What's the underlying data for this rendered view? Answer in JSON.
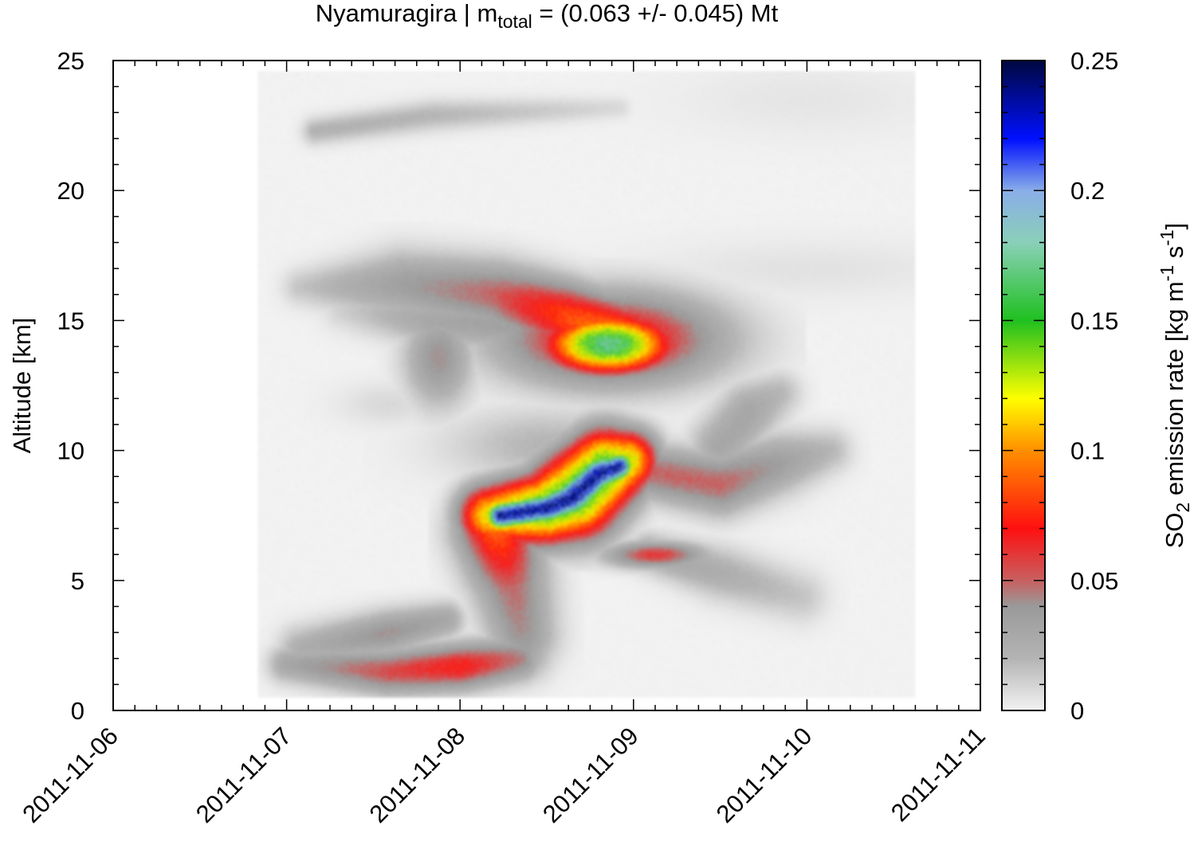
{
  "chart_data": {
    "type": "heatmap",
    "title": {
      "prefix": "Nyamuragira | m",
      "subscript": "total",
      "suffix": " = (0.063 +/- 0.045) Mt"
    },
    "ylabel": "Altitude [km]",
    "colorbar_label": {
      "part1": "SO",
      "sub": "2",
      "part2": " emission rate [kg m",
      "sup1": "-1",
      "part3": " s",
      "sup2": "-1",
      "part4": "]"
    },
    "x_ticks": [
      "2011-11-06",
      "2011-11-07",
      "2011-11-08",
      "2011-11-09",
      "2011-11-10",
      "2011-11-11"
    ],
    "xlim": [
      "2011-11-06",
      "2011-11-11"
    ],
    "y_ticks": [
      "0",
      "5",
      "10",
      "15",
      "20",
      "25"
    ],
    "ylim": [
      0,
      25
    ],
    "colorbar_ticks": [
      "0",
      "0.05",
      "0.1",
      "0.15",
      "0.2",
      "0.25"
    ],
    "clim": [
      0,
      0.25
    ],
    "grid": false,
    "colorscale": [
      {
        "v": 0.0,
        "c": "#f2f2f2"
      },
      {
        "v": 0.02,
        "c": "#b4b4b4"
      },
      {
        "v": 0.04,
        "c": "#9a9a9a"
      },
      {
        "v": 0.05,
        "c": "#c86060"
      },
      {
        "v": 0.07,
        "c": "#ff1010"
      },
      {
        "v": 0.1,
        "c": "#ff9000"
      },
      {
        "v": 0.12,
        "c": "#ffff00"
      },
      {
        "v": 0.15,
        "c": "#20c020"
      },
      {
        "v": 0.18,
        "c": "#8ad0b8"
      },
      {
        "v": 0.2,
        "c": "#8aaee8"
      },
      {
        "v": 0.22,
        "c": "#0010ff"
      },
      {
        "v": 0.25,
        "c": "#000840"
      }
    ],
    "data_extent": {
      "x": [
        "2011-11-06 20:00",
        "2011-11-10 15:00"
      ],
      "y": [
        0.5,
        24.6
      ]
    },
    "features": [
      {
        "type": "blob",
        "x": "2011-11-08 20:30",
        "y": 14.1,
        "sx": 1.8,
        "sy": 0.75,
        "v": 0.17
      },
      {
        "type": "blob",
        "x": "2011-11-08 20:45",
        "y": 14.3,
        "sx": 3.2,
        "sy": 1.2,
        "v": 0.08
      },
      {
        "type": "stroke",
        "points": [
          [
            "2011-11-07 02:00",
            16.3
          ],
          [
            "2011-11-07 16:00",
            16.4
          ],
          [
            "2011-11-08 05:00",
            16.0
          ],
          [
            "2011-11-08 14:00",
            15.2
          ],
          [
            "2011-11-08 22:00",
            14.4
          ]
        ],
        "w": [
          0.5,
          0.9,
          0.9,
          0.9,
          0.9
        ],
        "v": [
          0.015,
          0.035,
          0.05,
          0.08,
          0.1
        ]
      },
      {
        "type": "stroke",
        "points": [
          [
            "2011-11-07 08:00",
            15.5
          ],
          [
            "2011-11-07 20:00",
            15.0
          ],
          [
            "2011-11-08 08:00",
            14.8
          ]
        ],
        "w": [
          0.6,
          0.7,
          0.7
        ],
        "v": [
          0.012,
          0.03,
          0.035
        ]
      },
      {
        "type": "blob",
        "x": "2011-11-07 21:00",
        "y": 13.6,
        "sx": 1.0,
        "sy": 1.3,
        "v": 0.04
      },
      {
        "type": "stroke",
        "points": [
          [
            "2011-11-07 04:00",
            22.3
          ],
          [
            "2011-11-07 20:00",
            22.9
          ],
          [
            "2011-11-08 22:00",
            23.2
          ]
        ],
        "w": [
          0.35,
          0.4,
          0.3
        ],
        "v": [
          0.022,
          0.02,
          0.008
        ]
      },
      {
        "type": "stroke",
        "points": [
          [
            "2011-11-08 05:30",
            7.5
          ],
          [
            "2011-11-08 12:00",
            7.8
          ],
          [
            "2011-11-08 15:30",
            8.2
          ],
          [
            "2011-11-08 19:00",
            9.1
          ],
          [
            "2011-11-08 22:00",
            9.4
          ]
        ],
        "w": [
          0.4,
          0.45,
          0.55,
          0.5,
          0.4
        ],
        "v": [
          0.24,
          0.24,
          0.24,
          0.24,
          0.24
        ]
      },
      {
        "type": "stroke",
        "points": [
          [
            "2011-11-08 04:00",
            7.5
          ],
          [
            "2011-11-08 12:00",
            7.8
          ],
          [
            "2011-11-08 16:00",
            8.3
          ],
          [
            "2011-11-08 20:00",
            9.3
          ],
          [
            "2011-11-08 23:00",
            9.6
          ]
        ],
        "w": [
          0.8,
          0.9,
          1.1,
          1.0,
          0.8
        ],
        "v": [
          0.12,
          0.16,
          0.16,
          0.16,
          0.13
        ]
      },
      {
        "type": "stroke",
        "points": [
          [
            "2011-11-08 05:00",
            7.0
          ],
          [
            "2011-11-08 07:00",
            5.0
          ],
          [
            "2011-11-08 08:30",
            3.0
          ],
          [
            "2011-11-08 09:00",
            2.2
          ]
        ],
        "w": [
          1.0,
          1.0,
          0.9,
          0.7
        ],
        "v": [
          0.09,
          0.05,
          0.04,
          0.03
        ]
      },
      {
        "type": "stroke",
        "points": [
          [
            "2011-11-07 00:00",
            1.8
          ],
          [
            "2011-11-07 14:00",
            1.5
          ],
          [
            "2011-11-08 00:00",
            1.7
          ],
          [
            "2011-11-08 08:00",
            2.0
          ]
        ],
        "w": [
          0.5,
          0.6,
          0.6,
          0.6
        ],
        "v": [
          0.03,
          0.055,
          0.07,
          0.045
        ]
      },
      {
        "type": "stroke",
        "points": [
          [
            "2011-11-07 02:00",
            2.4
          ],
          [
            "2011-11-07 14:00",
            3.0
          ],
          [
            "2011-11-07 22:00",
            3.5
          ]
        ],
        "w": [
          0.6,
          0.6,
          0.5
        ],
        "v": [
          0.025,
          0.04,
          0.03
        ]
      },
      {
        "type": "stroke",
        "points": [
          [
            "2011-11-09 00:00",
            9.3
          ],
          [
            "2011-11-09 12:00",
            8.7
          ],
          [
            "2011-11-09 20:00",
            9.5
          ],
          [
            "2011-11-10 03:00",
            10.0
          ]
        ],
        "w": [
          0.7,
          0.8,
          0.8,
          0.6
        ],
        "v": [
          0.05,
          0.05,
          0.035,
          0.02
        ]
      },
      {
        "type": "stroke",
        "points": [
          [
            "2011-11-09 12:00",
            10.2
          ],
          [
            "2011-11-09 16:00",
            11.5
          ],
          [
            "2011-11-09 20:00",
            12.2
          ]
        ],
        "w": [
          0.8,
          0.8,
          0.6
        ],
        "v": [
          0.03,
          0.03,
          0.02
        ]
      },
      {
        "type": "blob",
        "x": "2011-11-09 03:00",
        "y": 6.0,
        "sx": 1.5,
        "sy": 0.35,
        "v": 0.06
      },
      {
        "type": "stroke",
        "points": [
          [
            "2011-11-09 02:00",
            6.1
          ],
          [
            "2011-11-09 12:00",
            5.3
          ],
          [
            "2011-11-09 23:00",
            4.4
          ]
        ],
        "w": [
          0.5,
          0.7,
          0.7
        ],
        "v": [
          0.03,
          0.025,
          0.015
        ]
      },
      {
        "type": "stroke",
        "points": [
          [
            "2011-11-07 08:00",
            16.8
          ],
          [
            "2011-11-08 04:00",
            16.7
          ]
        ],
        "w": [
          0.4,
          0.4
        ],
        "v": [
          0.01,
          0.01
        ]
      },
      {
        "type": "blob",
        "x": "2011-11-08 12:00",
        "y": 10.2,
        "sx": 3.0,
        "sy": 1.0,
        "v": 0.02
      },
      {
        "type": "blob",
        "x": "2011-11-07 14:00",
        "y": 11.8,
        "sx": 1.5,
        "sy": 0.6,
        "v": 0.008
      },
      {
        "type": "blob",
        "x": "2011-11-10 00:00",
        "y": 17.0,
        "sx": 5.0,
        "sy": 0.8,
        "v": 0.005
      },
      {
        "type": "blob",
        "x": "2011-11-10 00:00",
        "y": 23.5,
        "sx": 4.0,
        "sy": 1.0,
        "v": 0.004
      }
    ]
  }
}
